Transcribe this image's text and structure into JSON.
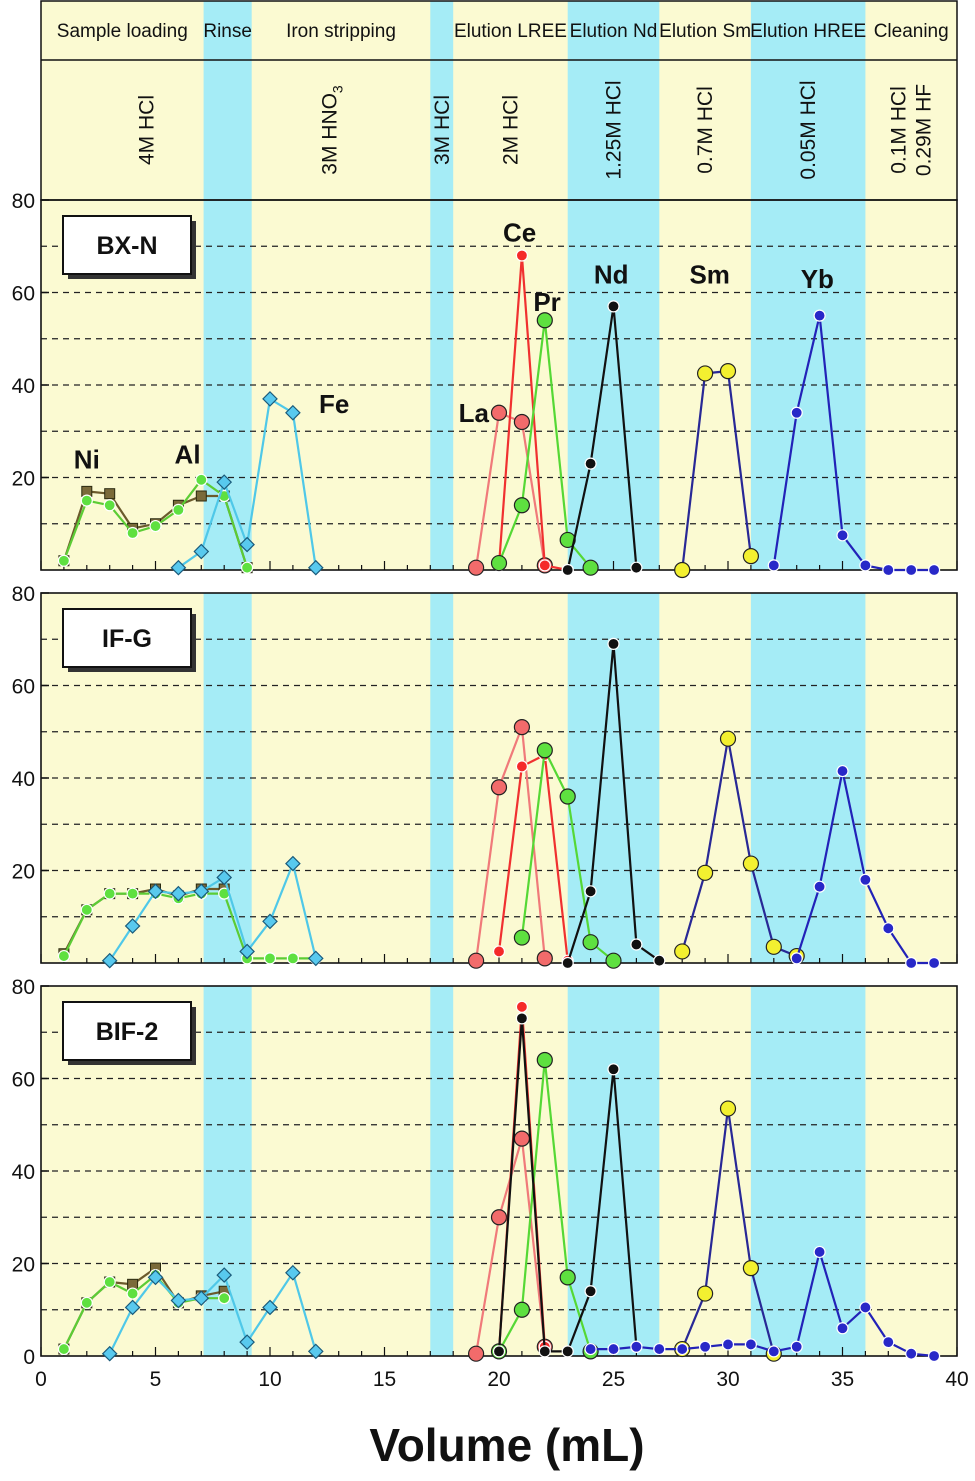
{
  "stages": [
    {
      "label": "Sample loading",
      "from": 0,
      "to": 7.1
    },
    {
      "label": "Rinse",
      "from": 7.1,
      "to": 9.2
    },
    {
      "label": "Iron stripping",
      "from": 9.2,
      "to": 17
    },
    {
      "label": "",
      "from": 17,
      "to": 18
    },
    {
      "label": "Elution LREE",
      "from": 18,
      "to": 23
    },
    {
      "label": "Elution Nd",
      "from": 23,
      "to": 27
    },
    {
      "label": "Elution Sm",
      "from": 27,
      "to": 31
    },
    {
      "label": "Elution HREE",
      "from": 31,
      "to": 36
    },
    {
      "label": "Cleaning",
      "from": 36,
      "to": 40
    }
  ],
  "reagents": [
    {
      "lines": [
        "4M HCl"
      ],
      "at": 4.6
    },
    {
      "lines": [
        "3M HNO3"
      ],
      "at": 12.6
    },
    {
      "lines": [
        "3M HCl"
      ],
      "at": 17.5
    },
    {
      "lines": [
        "2M HCl"
      ],
      "at": 20.5
    },
    {
      "lines": [
        "1.25M HCl"
      ],
      "at": 25
    },
    {
      "lines": [
        "0.7M HCl"
      ],
      "at": 29
    },
    {
      "lines": [
        "0.05M HCl"
      ],
      "at": 33.5
    },
    {
      "lines": [
        "0.1M HCl",
        "0.29M HF"
      ],
      "at": 38
    }
  ],
  "band_colors": {
    "yellow": "#fbfad2",
    "cyan": "#a5ecf6"
  },
  "cyan_bands": [
    [
      7.1,
      9.2
    ],
    [
      17,
      18
    ],
    [
      23,
      27
    ],
    [
      31,
      36
    ]
  ],
  "xlabel": "Volume (mL)",
  "xlim": [
    0,
    40
  ],
  "ylim": [
    0,
    80
  ],
  "x_ticks": [
    0,
    5,
    10,
    15,
    20,
    25,
    30,
    35,
    40
  ],
  "y_ticks": [
    20,
    40,
    60,
    80
  ],
  "chart_data": [
    {
      "type": "line",
      "sample": "BX-N",
      "labels": [
        {
          "text": "Ni",
          "x": 2.0,
          "y": 22
        },
        {
          "text": "Al",
          "x": 6.4,
          "y": 23
        },
        {
          "text": "Fe",
          "x": 12.8,
          "y": 34
        },
        {
          "text": "La",
          "x": 18.9,
          "y": 32
        },
        {
          "text": "Ce",
          "x": 20.9,
          "y": 71
        },
        {
          "text": "Pr",
          "x": 22.1,
          "y": 56
        },
        {
          "text": "Nd",
          "x": 24.9,
          "y": 62
        },
        {
          "text": "Sm",
          "x": 29.2,
          "y": 62
        },
        {
          "text": "Yb",
          "x": 33.9,
          "y": 61
        }
      ],
      "series": [
        {
          "name": "Ni",
          "color": "#6b5a2c",
          "fill": "#7a6a3a",
          "marker": "square",
          "x": [
            1,
            2,
            3,
            4,
            5,
            6,
            7,
            8,
            9
          ],
          "y": [
            2,
            17,
            16.5,
            9,
            10,
            14,
            16,
            16,
            0.5
          ]
        },
        {
          "name": "Al",
          "color": "#5ccc35",
          "fill": "#5ee040",
          "marker": "dot",
          "x": [
            1,
            2,
            3,
            4,
            5,
            6,
            7,
            8,
            9
          ],
          "y": [
            2,
            15,
            14,
            8,
            9.5,
            13,
            19.5,
            16,
            0.5
          ]
        },
        {
          "name": "Fe",
          "color": "#4fc8e8",
          "fill": "#58c9ee",
          "marker": "diamond",
          "x": [
            6,
            7,
            8,
            9,
            10,
            11,
            12
          ],
          "y": [
            0.5,
            4,
            19,
            5.5,
            37,
            34,
            0.5
          ]
        },
        {
          "name": "La",
          "color": "#f07a7a",
          "fill": "#f26b6b",
          "marker": "circle",
          "x": [
            19,
            20,
            21,
            22
          ],
          "y": [
            0.5,
            34,
            32,
            1
          ]
        },
        {
          "name": "Ce",
          "color": "#f03030",
          "fill": "#f52a2a",
          "marker": "dot",
          "x": [
            20,
            21,
            22,
            23
          ],
          "y": [
            1,
            68,
            1,
            0
          ]
        },
        {
          "name": "Pr",
          "color": "#55d835",
          "fill": "#5ee040",
          "marker": "circle",
          "x": [
            20,
            21,
            22,
            23,
            24
          ],
          "y": [
            1.5,
            14,
            54,
            6.5,
            0.5
          ]
        },
        {
          "name": "Nd",
          "color": "#111111",
          "fill": "#111111",
          "marker": "dot",
          "x": [
            23,
            24,
            25,
            26
          ],
          "y": [
            0,
            23,
            57,
            0.5
          ]
        },
        {
          "name": "Sm",
          "color": "#282896",
          "fill": "#f3f030",
          "marker": "circle",
          "x": [
            28,
            29,
            30,
            31
          ],
          "y": [
            0,
            42.5,
            43,
            3
          ]
        },
        {
          "name": "Yb",
          "color": "#2222b8",
          "fill": "#2828c8",
          "marker": "dot",
          "x": [
            32,
            33,
            34,
            35,
            36,
            37,
            38,
            39
          ],
          "y": [
            1,
            34,
            55,
            7.5,
            1,
            0,
            0,
            0
          ]
        }
      ]
    },
    {
      "type": "line",
      "sample": "IF-G",
      "labels": [],
      "series": [
        {
          "name": "Ni",
          "color": "#6b5a2c",
          "fill": "#7a6a3a",
          "marker": "square",
          "x": [
            1,
            2,
            3,
            4,
            5,
            6,
            7,
            8
          ],
          "y": [
            2,
            11.5,
            15,
            15,
            16,
            14.5,
            16,
            16
          ]
        },
        {
          "name": "Al",
          "color": "#5ccc35",
          "fill": "#5ee040",
          "marker": "dot",
          "x": [
            1,
            2,
            3,
            4,
            5,
            6,
            7,
            8,
            9,
            10,
            11,
            12
          ],
          "y": [
            1.5,
            11.5,
            15,
            15,
            15,
            14,
            15,
            15,
            1,
            1,
            1,
            1
          ]
        },
        {
          "name": "Fe",
          "color": "#4fc8e8",
          "fill": "#58c9ee",
          "marker": "diamond",
          "x": [
            3,
            4,
            5,
            6,
            7,
            8,
            9,
            10,
            11,
            12
          ],
          "y": [
            0.5,
            8,
            15.5,
            15,
            15.5,
            18.5,
            2.5,
            9,
            21.5,
            1
          ]
        },
        {
          "name": "La",
          "color": "#f07a7a",
          "fill": "#f26b6b",
          "marker": "circle",
          "x": [
            19,
            20,
            21,
            22
          ],
          "y": [
            0.5,
            38,
            51,
            1
          ]
        },
        {
          "name": "Ce",
          "color": "#f03030",
          "fill": "#f52a2a",
          "marker": "dot",
          "x": [
            20,
            21,
            22,
            23
          ],
          "y": [
            2.5,
            42.5,
            45,
            0.5
          ]
        },
        {
          "name": "Pr",
          "color": "#55d835",
          "fill": "#5ee040",
          "marker": "circle",
          "x": [
            21,
            22,
            23,
            24,
            25
          ],
          "y": [
            5.5,
            46,
            36,
            4.5,
            0.5
          ]
        },
        {
          "name": "Nd",
          "color": "#111111",
          "fill": "#111111",
          "marker": "dot",
          "x": [
            23,
            24,
            25,
            26,
            27
          ],
          "y": [
            0,
            15.5,
            69,
            4,
            0.5
          ]
        },
        {
          "name": "Sm",
          "color": "#282896",
          "fill": "#f3f030",
          "marker": "circle",
          "x": [
            28,
            29,
            30,
            31,
            32,
            33
          ],
          "y": [
            2.5,
            19.5,
            48.5,
            21.5,
            3.5,
            1.5
          ]
        },
        {
          "name": "Yb",
          "color": "#2222b8",
          "fill": "#2828c8",
          "marker": "dot",
          "x": [
            33,
            34,
            35,
            36,
            37,
            38,
            39
          ],
          "y": [
            1,
            16.5,
            41.5,
            18,
            7.5,
            0,
            0
          ]
        }
      ]
    },
    {
      "type": "line",
      "sample": "BIF-2",
      "labels": [],
      "series": [
        {
          "name": "Ni",
          "color": "#6b5a2c",
          "fill": "#7a6a3a",
          "marker": "square",
          "x": [
            1,
            2,
            3,
            4,
            5,
            6,
            7,
            8
          ],
          "y": [
            1.5,
            11.5,
            16,
            15.5,
            19,
            11.5,
            13,
            14
          ]
        },
        {
          "name": "Al",
          "color": "#5ccc35",
          "fill": "#5ee040",
          "marker": "dot",
          "x": [
            1,
            2,
            3,
            4,
            5,
            6,
            7,
            8
          ],
          "y": [
            1.5,
            11.5,
            16,
            13.5,
            17.5,
            11.5,
            12.5,
            12.5
          ]
        },
        {
          "name": "Fe",
          "color": "#4fc8e8",
          "fill": "#58c9ee",
          "marker": "diamond",
          "x": [
            3,
            4,
            5,
            6,
            7,
            8,
            9,
            10,
            11,
            12
          ],
          "y": [
            0.5,
            10.5,
            17,
            12,
            12.5,
            17.5,
            3,
            10.5,
            18,
            1
          ]
        },
        {
          "name": "La",
          "color": "#f07a7a",
          "fill": "#f26b6b",
          "marker": "circle",
          "x": [
            19,
            20,
            21,
            22
          ],
          "y": [
            0.5,
            30,
            47,
            2
          ]
        },
        {
          "name": "Ce",
          "color": "#f03030",
          "fill": "#f52a2a",
          "marker": "dot",
          "x": [
            20,
            21,
            22
          ],
          "y": [
            1,
            75.5,
            2
          ]
        },
        {
          "name": "Pr",
          "color": "#55d835",
          "fill": "#5ee040",
          "marker": "circle",
          "x": [
            20,
            21,
            22,
            23,
            24
          ],
          "y": [
            1,
            10,
            64,
            17,
            1
          ]
        },
        {
          "name": "Nd",
          "color": "#111111",
          "fill": "#111111",
          "marker": "dot",
          "x": [
            20,
            21,
            22,
            23,
            24,
            25,
            26
          ],
          "y": [
            1,
            73,
            1,
            1,
            14,
            62,
            2
          ]
        },
        {
          "name": "Sm",
          "color": "#282896",
          "fill": "#f3f030",
          "marker": "circle",
          "x": [
            28,
            29,
            30,
            31,
            32
          ],
          "y": [
            1.5,
            13.5,
            53.5,
            19,
            0.5
          ]
        },
        {
          "name": "Yb",
          "color": "#2222b8",
          "fill": "#2828c8",
          "marker": "dot",
          "x": [
            24,
            25,
            26,
            27,
            28,
            29,
            30,
            31,
            32,
            33,
            34,
            35,
            36,
            37,
            38,
            39
          ],
          "y": [
            1.5,
            1.5,
            2,
            1.5,
            1.5,
            2,
            2.5,
            2.5,
            1,
            2,
            22.5,
            6,
            10.5,
            3,
            0.5,
            0
          ]
        }
      ]
    }
  ]
}
